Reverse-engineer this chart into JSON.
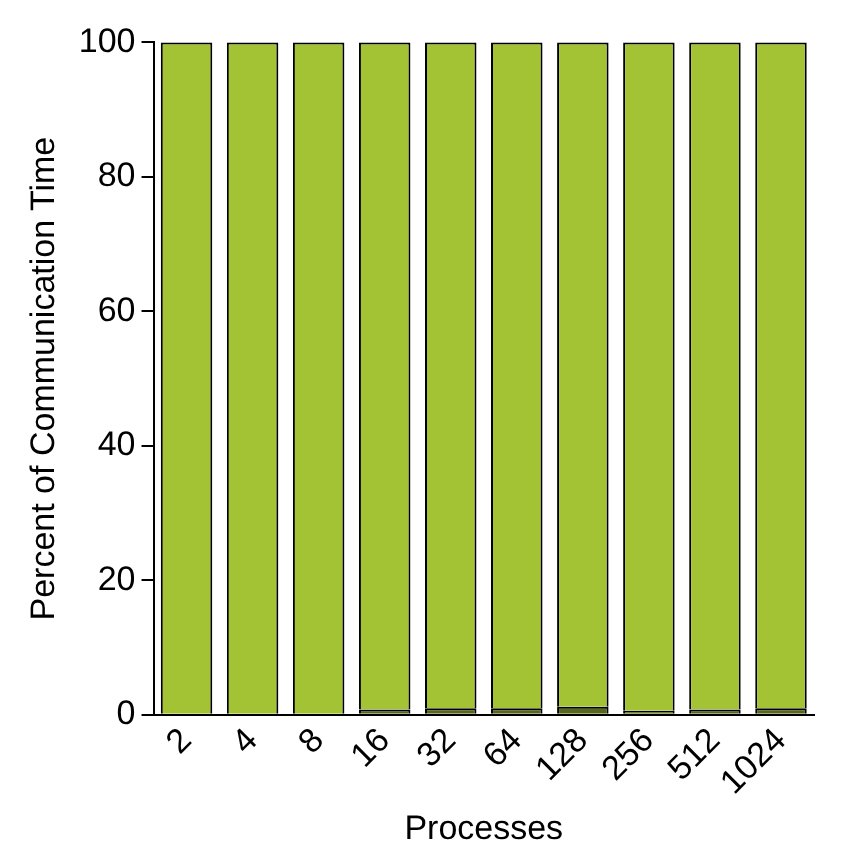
{
  "chart_data": {
    "type": "bar",
    "stacked": true,
    "xlabel": "Processes",
    "ylabel": "Percent of Communication Time",
    "categories": [
      "2",
      "4",
      "8",
      "16",
      "32",
      "64",
      "128",
      "256",
      "512",
      "1024"
    ],
    "series": [
      {
        "color": "#56661a",
        "values": [
          null,
          null,
          null,
          0.8,
          1.0,
          1.0,
          1.2,
          0.6,
          0.8,
          1.0
        ]
      },
      {
        "color": "#a4c334",
        "values": [
          100,
          100,
          100,
          99.2,
          99.0,
          99.0,
          98.8,
          99.4,
          99.2,
          99.0
        ]
      }
    ],
    "ylim": [
      0,
      100
    ],
    "yticks": [
      0,
      20,
      40,
      60,
      80,
      100
    ],
    "grid": false,
    "legend": false
  }
}
